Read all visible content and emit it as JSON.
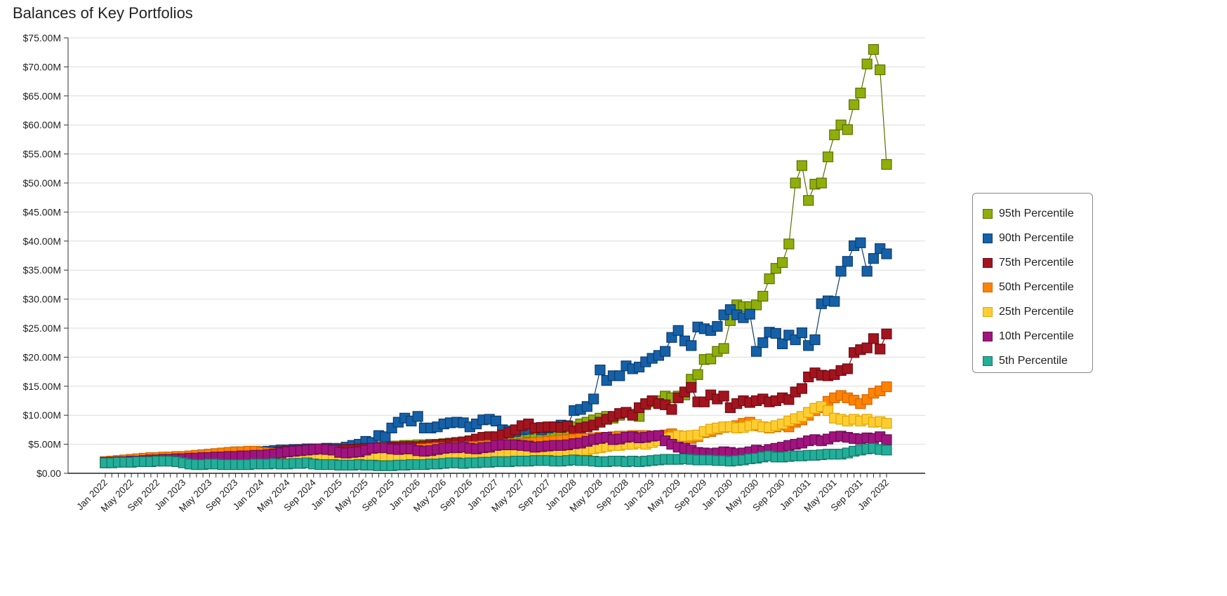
{
  "chart_data": {
    "type": "line",
    "title": "Balances of Key Portfolios",
    "xlabel": "",
    "ylabel": "",
    "ylim": [
      0,
      75
    ],
    "y_unit": "$M",
    "yticks": [
      "$0.00",
      "$5.00M",
      "$10.00M",
      "$15.00M",
      "$20.00M",
      "$25.00M",
      "$30.00M",
      "$35.00M",
      "$40.00M",
      "$45.00M",
      "$50.00M",
      "$55.00M",
      "$60.00M",
      "$65.00M",
      "$70.00M",
      "$75.00M"
    ],
    "x_start": "Jan 2022",
    "x_months": 121,
    "xticks": [
      "Jan 2022",
      "May 2022",
      "Sep 2022",
      "Jan 2023",
      "May 2023",
      "Sep 2023",
      "Jan 2024",
      "May 2024",
      "Sep 2024",
      "Jan 2025",
      "May 2025",
      "Sep 2025",
      "Jan 2026",
      "May 2026",
      "Sep 2026",
      "Jan 2027",
      "May 2027",
      "Sep 2027",
      "Jan 2028",
      "May 2028",
      "Sep 2028",
      "Jan 2029",
      "May 2029",
      "Sep 2029",
      "Jan 2030",
      "May 2030",
      "Sep 2030",
      "Jan 2031",
      "May 2031",
      "Sep 2031",
      "Jan 2032"
    ],
    "grid": true,
    "legend_position": "right",
    "series": [
      {
        "name": "95th Percentile",
        "color": "#8fae0b",
        "stroke": "#5b6f00",
        "values": [
          1.9,
          2.0,
          2.0,
          2.1,
          2.1,
          2.2,
          2.2,
          2.3,
          2.3,
          2.4,
          2.4,
          2.5,
          2.5,
          2.6,
          2.7,
          2.8,
          2.9,
          3.0,
          3.1,
          3.2,
          3.3,
          3.4,
          3.5,
          3.6,
          3.7,
          3.8,
          3.9,
          4.0,
          4.0,
          4.1,
          4.1,
          4.2,
          4.2,
          4.2,
          4.3,
          4.3,
          4.3,
          4.4,
          4.4,
          4.5,
          4.5,
          4.5,
          4.6,
          4.6,
          4.7,
          4.7,
          4.8,
          4.8,
          4.9,
          4.9,
          5.0,
          5.0,
          5.1,
          5.2,
          5.3,
          5.4,
          5.5,
          5.6,
          5.7,
          5.8,
          6.0,
          6.2,
          6.4,
          6.6,
          6.8,
          7.0,
          7.0,
          6.5,
          6.8,
          7.2,
          7.0,
          7.5,
          8.0,
          8.5,
          8.8,
          9.2,
          9.5,
          9.8,
          9.5,
          10.0,
          10.5,
          10.2,
          9.8,
          11.8,
          12.3,
          12.5,
          13.3,
          13.0,
          13.3,
          13.5,
          16.2,
          17.0,
          19.6,
          19.7,
          21.0,
          21.5,
          26.3,
          29.0,
          28.7,
          28.7,
          29.0,
          30.5,
          33.5,
          35.3,
          36.3,
          39.5,
          50.0,
          53.0,
          47.0,
          49.8,
          50.0,
          54.5,
          58.3,
          60.0,
          59.2,
          63.5,
          65.5,
          70.5,
          73.0,
          69.5,
          53.2
        ]
      },
      {
        "name": "90th Percentile",
        "color": "#1561a8",
        "stroke": "#0d3c6e",
        "values": [
          1.8,
          1.9,
          2.0,
          2.0,
          2.1,
          2.1,
          2.2,
          2.2,
          2.3,
          2.3,
          2.4,
          2.4,
          2.5,
          2.6,
          2.7,
          2.8,
          2.9,
          3.0,
          3.1,
          3.2,
          3.3,
          3.4,
          3.5,
          3.6,
          3.7,
          3.8,
          3.9,
          4.0,
          4.0,
          4.1,
          4.1,
          4.2,
          4.2,
          4.2,
          4.3,
          4.2,
          4.2,
          4.5,
          4.8,
          5.0,
          5.5,
          5.3,
          6.5,
          6.3,
          7.8,
          8.8,
          9.5,
          9.0,
          9.8,
          7.8,
          7.8,
          8.0,
          8.5,
          8.7,
          8.8,
          8.7,
          8.0,
          8.5,
          9.2,
          9.3,
          9.0,
          7.5,
          7.3,
          7.2,
          7.5,
          7.6,
          7.8,
          7.5,
          7.8,
          8.0,
          8.3,
          8.2,
          10.8,
          11.0,
          11.5,
          12.8,
          17.8,
          16.0,
          16.8,
          16.8,
          18.5,
          18.0,
          18.3,
          19.2,
          19.8,
          20.3,
          21.0,
          23.4,
          24.6,
          22.8,
          22.0,
          25.2,
          24.9,
          24.6,
          25.3,
          27.3,
          28.2,
          27.3,
          26.8,
          27.4,
          21.0,
          22.5,
          24.3,
          24.1,
          22.3,
          23.8,
          23.0,
          24.2,
          22.0,
          23.0,
          29.2,
          29.7,
          29.6,
          34.8,
          36.5,
          39.2,
          39.7,
          34.8,
          37.0,
          38.7,
          37.8
        ]
      },
      {
        "name": "75th Percentile",
        "color": "#a3141f",
        "stroke": "#6e0c14",
        "values": [
          2.0,
          2.1,
          2.1,
          2.2,
          2.3,
          2.3,
          2.4,
          2.4,
          2.5,
          2.5,
          2.6,
          2.6,
          2.7,
          2.7,
          2.8,
          2.8,
          2.9,
          2.9,
          3.0,
          3.0,
          3.1,
          3.1,
          3.2,
          3.3,
          3.4,
          3.5,
          3.6,
          3.7,
          3.8,
          3.9,
          4.0,
          4.0,
          4.1,
          4.1,
          4.0,
          4.0,
          4.0,
          4.1,
          4.1,
          4.2,
          4.3,
          4.3,
          4.4,
          4.4,
          4.5,
          4.5,
          4.6,
          4.6,
          4.6,
          4.7,
          4.8,
          4.9,
          5.0,
          5.1,
          5.3,
          5.4,
          5.6,
          5.9,
          6.2,
          6.3,
          6.3,
          6.6,
          7.0,
          7.5,
          8.2,
          8.5,
          7.8,
          7.9,
          8.0,
          8.0,
          7.9,
          8.1,
          7.3,
          7.8,
          8.0,
          8.3,
          8.8,
          9.3,
          9.8,
          10.3,
          10.5,
          10.0,
          11.3,
          12.0,
          12.5,
          12.0,
          11.8,
          11.0,
          13.0,
          14.0,
          14.8,
          12.3,
          12.3,
          13.5,
          12.8,
          13.3,
          11.3,
          12.0,
          12.5,
          12.2,
          12.5,
          12.8,
          12.3,
          12.5,
          13.0,
          12.7,
          14.0,
          14.6,
          16.6,
          17.3,
          16.9,
          16.8,
          17.0,
          17.7,
          18.0,
          20.8,
          21.3,
          21.6,
          23.2,
          21.4,
          24.0
        ]
      },
      {
        "name": "50th Percentile",
        "color": "#ff8200",
        "stroke": "#d06500",
        "values": [
          2.0,
          2.1,
          2.2,
          2.3,
          2.4,
          2.5,
          2.6,
          2.7,
          2.7,
          2.8,
          2.8,
          2.9,
          2.9,
          3.0,
          3.1,
          3.2,
          3.3,
          3.4,
          3.5,
          3.6,
          3.7,
          3.7,
          3.8,
          3.8,
          3.6,
          3.5,
          3.4,
          3.3,
          3.3,
          3.2,
          3.2,
          3.3,
          3.4,
          3.5,
          3.6,
          3.6,
          3.5,
          3.5,
          3.6,
          3.6,
          3.7,
          3.8,
          3.9,
          3.9,
          4.0,
          4.0,
          4.1,
          4.1,
          4.2,
          4.2,
          4.3,
          4.4,
          4.4,
          4.4,
          4.5,
          4.5,
          4.6,
          4.6,
          4.7,
          4.8,
          4.8,
          4.9,
          5.0,
          5.0,
          5.1,
          5.2,
          5.3,
          5.4,
          5.5,
          5.6,
          5.7,
          5.8,
          5.9,
          6.0,
          6.0,
          6.1,
          6.2,
          6.2,
          6.3,
          6.4,
          6.4,
          6.5,
          6.5,
          6.5,
          6.3,
          6.5,
          6.6,
          6.8,
          6.4,
          6.2,
          6.0,
          6.3,
          7.0,
          7.2,
          7.6,
          7.9,
          8.0,
          8.2,
          8.6,
          8.8,
          8.2,
          8.0,
          7.8,
          8.0,
          8.3,
          8.0,
          8.8,
          9.2,
          10.0,
          10.8,
          11.3,
          12.4,
          13.0,
          13.4,
          13.0,
          12.6,
          12.0,
          12.7,
          13.8,
          14.2,
          14.9
        ]
      },
      {
        "name": "25th Percentile",
        "color": "#ffcd33",
        "stroke": "#e0a800",
        "values": [
          1.9,
          1.9,
          2.0,
          2.0,
          2.0,
          2.1,
          2.1,
          2.1,
          2.2,
          2.2,
          2.2,
          2.3,
          2.3,
          2.3,
          2.3,
          2.4,
          2.4,
          2.4,
          2.4,
          2.5,
          2.5,
          2.5,
          2.5,
          2.5,
          2.6,
          2.6,
          2.6,
          2.6,
          2.7,
          2.7,
          2.7,
          2.7,
          2.8,
          2.8,
          2.8,
          2.8,
          2.8,
          2.9,
          2.9,
          3.0,
          3.0,
          3.1,
          3.1,
          3.0,
          3.0,
          3.0,
          3.0,
          3.0,
          3.0,
          3.0,
          3.1,
          3.1,
          3.1,
          3.2,
          3.2,
          3.2,
          3.2,
          3.3,
          3.3,
          3.3,
          3.3,
          3.4,
          3.4,
          3.5,
          3.5,
          3.5,
          3.6,
          3.6,
          3.6,
          3.7,
          3.7,
          3.8,
          3.8,
          3.9,
          4.0,
          4.2,
          4.4,
          4.6,
          4.8,
          4.8,
          5.0,
          5.0,
          5.2,
          5.0,
          5.3,
          5.6,
          6.0,
          6.2,
          6.5,
          6.4,
          6.5,
          6.6,
          7.2,
          7.6,
          7.8,
          8.0,
          8.0,
          7.8,
          7.9,
          8.2,
          8.4,
          8.0,
          7.9,
          8.2,
          8.5,
          9.0,
          9.4,
          9.8,
          10.5,
          11.2,
          11.5,
          10.8,
          9.5,
          9.3,
          9.0,
          9.3,
          9.0,
          9.3,
          8.8,
          8.9,
          8.6
        ]
      },
      {
        "name": "10th Percentile",
        "color": "#a1147f",
        "stroke": "#6c0c55",
        "values": [
          1.9,
          1.9,
          2.0,
          2.0,
          2.1,
          2.1,
          2.2,
          2.3,
          2.3,
          2.4,
          2.4,
          2.5,
          2.5,
          2.6,
          2.6,
          2.7,
          2.7,
          2.8,
          2.8,
          2.9,
          2.9,
          3.0,
          3.0,
          3.1,
          3.1,
          3.2,
          3.3,
          3.5,
          3.7,
          3.8,
          3.9,
          4.0,
          4.1,
          4.2,
          4.1,
          4.0,
          3.6,
          3.5,
          3.6,
          3.7,
          4.0,
          4.3,
          4.4,
          4.4,
          4.2,
          4.1,
          4.2,
          4.2,
          3.9,
          3.8,
          3.9,
          4.1,
          4.3,
          4.4,
          4.4,
          4.5,
          4.3,
          4.2,
          4.4,
          4.5,
          4.8,
          4.9,
          4.9,
          4.9,
          4.8,
          4.7,
          4.5,
          4.6,
          4.7,
          4.8,
          4.8,
          4.9,
          5.1,
          5.2,
          5.5,
          5.8,
          6.0,
          6.2,
          5.8,
          5.9,
          6.2,
          6.3,
          6.1,
          6.2,
          6.4,
          6.5,
          5.6,
          5.0,
          4.5,
          4.3,
          4.0,
          3.6,
          3.5,
          3.4,
          3.5,
          3.7,
          3.6,
          3.4,
          3.5,
          3.7,
          4.0,
          3.8,
          4.1,
          4.3,
          4.5,
          4.8,
          5.0,
          5.2,
          5.6,
          5.8,
          5.6,
          5.9,
          6.3,
          6.4,
          6.2,
          6.0,
          5.9,
          6.1,
          6.0,
          6.3,
          5.8
        ]
      },
      {
        "name": "5th Percentile",
        "color": "#22ae99",
        "stroke": "#147566",
        "values": [
          1.8,
          1.8,
          1.9,
          1.9,
          1.9,
          2.0,
          2.0,
          2.0,
          2.1,
          2.1,
          2.1,
          2.0,
          1.8,
          1.6,
          1.5,
          1.5,
          1.6,
          1.6,
          1.5,
          1.5,
          1.5,
          1.5,
          1.5,
          1.6,
          1.6,
          1.6,
          1.7,
          1.6,
          1.6,
          1.7,
          1.7,
          1.8,
          1.6,
          1.5,
          1.5,
          1.5,
          1.4,
          1.4,
          1.4,
          1.5,
          1.4,
          1.4,
          1.3,
          1.3,
          1.3,
          1.4,
          1.4,
          1.5,
          1.5,
          1.5,
          1.6,
          1.6,
          1.7,
          1.8,
          1.8,
          1.7,
          1.8,
          1.8,
          1.9,
          1.9,
          2.0,
          2.0,
          2.0,
          2.1,
          2.1,
          2.1,
          2.2,
          2.2,
          2.2,
          2.1,
          2.1,
          2.2,
          2.3,
          2.2,
          2.2,
          2.1,
          2.0,
          2.0,
          2.1,
          2.1,
          2.0,
          2.1,
          2.0,
          2.1,
          2.2,
          2.3,
          2.4,
          2.4,
          2.4,
          2.5,
          2.4,
          2.3,
          2.3,
          2.3,
          2.2,
          2.2,
          2.1,
          2.2,
          2.3,
          2.5,
          2.6,
          2.8,
          3.0,
          2.8,
          2.8,
          2.9,
          3.0,
          3.0,
          3.1,
          3.1,
          3.2,
          3.3,
          3.3,
          3.3,
          3.5,
          3.8,
          4.0,
          4.2,
          4.3,
          4.1,
          4.0
        ]
      }
    ]
  }
}
